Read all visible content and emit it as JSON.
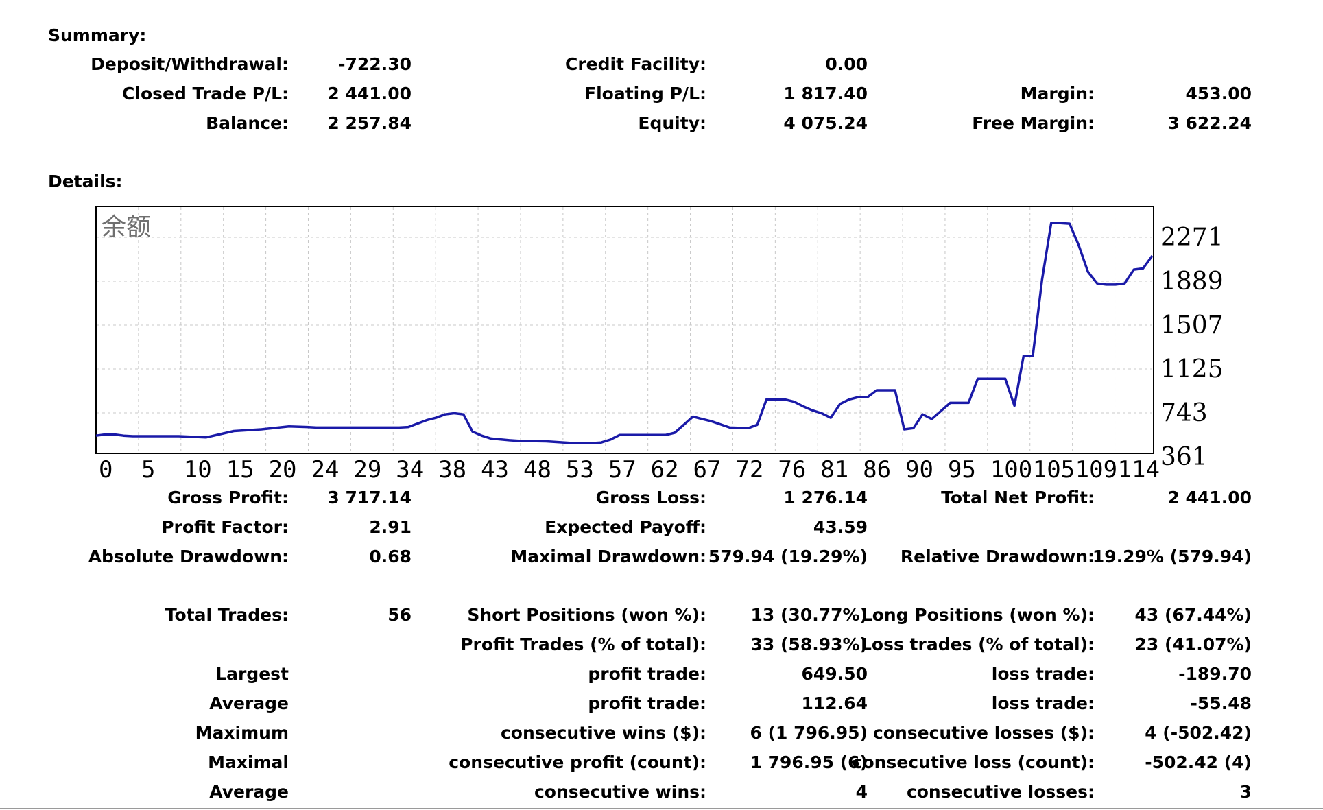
{
  "summary": {
    "title": "Summary:",
    "deposit_label": "Deposit/Withdrawal:",
    "deposit_value": "-722.30",
    "credit_label": "Credit Facility:",
    "credit_value": "0.00",
    "closed_label": "Closed Trade P/L:",
    "closed_value": "2 441.00",
    "floating_label": "Floating P/L:",
    "floating_value": "1 817.40",
    "margin_label": "Margin:",
    "margin_value": "453.00",
    "balance_label": "Balance:",
    "balance_value": "2 257.84",
    "equity_label": "Equity:",
    "equity_value": "4 075.24",
    "free_margin_label": "Free Margin:",
    "free_margin_value": "3 622.24"
  },
  "details": {
    "title": "Details:",
    "gross_profit_label": "Gross Profit:",
    "gross_profit_value": "3 717.14",
    "gross_loss_label": "Gross Loss:",
    "gross_loss_value": "1 276.14",
    "total_net_label": "Total Net Profit:",
    "total_net_value": "2 441.00",
    "profit_factor_label": "Profit Factor:",
    "profit_factor_value": "2.91",
    "expected_payoff_label": "Expected Payoff:",
    "expected_payoff_value": "43.59",
    "abs_dd_label": "Absolute Drawdown:",
    "abs_dd_value": "0.68",
    "max_dd_label": "Maximal Drawdown:",
    "max_dd_value": "579.94 (19.29%)",
    "rel_dd_label": "Relative Drawdown:",
    "rel_dd_value": "19.29% (579.94)",
    "total_trades_label": "Total Trades:",
    "total_trades_value": "56",
    "short_label": "Short Positions (won %):",
    "short_value": "13 (30.77%)",
    "long_label": "Long Positions (won %):",
    "long_value": "43 (67.44%)",
    "profit_trades_label": "Profit Trades (% of total):",
    "profit_trades_value": "33 (58.93%)",
    "loss_trades_label": "Loss trades (% of total):",
    "loss_trades_value": "23 (41.07%)",
    "largest_label": "Largest",
    "largest_profit_label": "profit trade:",
    "largest_profit_value": "649.50",
    "largest_loss_label": "loss trade:",
    "largest_loss_value": "-189.70",
    "average_label": "Average",
    "average_profit_label": "profit trade:",
    "average_profit_value": "112.64",
    "average_loss_label": "loss trade:",
    "average_loss_value": "-55.48",
    "maximum_label": "Maximum",
    "max_cons_wins_label": "consecutive wins ($):",
    "max_cons_wins_value": "6 (1 796.95)",
    "max_cons_losses_label": "consecutive losses ($):",
    "max_cons_losses_value": "4 (-502.42)",
    "maximal_label": "Maximal",
    "maximal_profit_label": "consecutive profit (count):",
    "maximal_profit_value": "1 796.95 (6)",
    "maximal_loss_label": "consecutive loss (count):",
    "maximal_loss_value": "-502.42 (4)",
    "average2_label": "Average",
    "avg_cons_wins_label": "consecutive wins:",
    "avg_cons_wins_value": "4",
    "avg_cons_losses_label": "consecutive losses:",
    "avg_cons_losses_value": "3"
  },
  "chart_data": {
    "type": "line",
    "title": "余额",
    "line_color": "#1a1aa8",
    "grid": true,
    "x_tick_labels": [
      "0",
      "5",
      "10",
      "15",
      "20",
      "24",
      "29",
      "34",
      "38",
      "43",
      "48",
      "53",
      "57",
      "62",
      "67",
      "72",
      "76",
      "81",
      "86",
      "90",
      "95",
      "100",
      "105",
      "109",
      "114"
    ],
    "y_tick_labels": [
      "2271",
      "1889",
      "1507",
      "1125",
      "743",
      "361"
    ],
    "y_ticks": [
      2271,
      1889,
      1507,
      1125,
      743,
      361
    ],
    "ylim": [
      361,
      2400
    ],
    "xlim": [
      0,
      115
    ],
    "series": [
      {
        "x": [
          0,
          1,
          2,
          3,
          4,
          5,
          7,
          9,
          12,
          15,
          18,
          21,
          23,
          24,
          26,
          27,
          30,
          33,
          34,
          36,
          37,
          38,
          39,
          40,
          41,
          42,
          43,
          45,
          46,
          49,
          51,
          52,
          54,
          55,
          56,
          57,
          58,
          59,
          60,
          61,
          62,
          63,
          64,
          65,
          66,
          67,
          69,
          71,
          72,
          73,
          74,
          75,
          76,
          77,
          78,
          79,
          80,
          81,
          82,
          83,
          84,
          85,
          86,
          87,
          88,
          89,
          90,
          91,
          92,
          93,
          94,
          95,
          96,
          97,
          98,
          99,
          100,
          101,
          102,
          103,
          104,
          105,
          106,
          107,
          108,
          109,
          110,
          111,
          112,
          113,
          114,
          115
        ],
        "y": [
          545,
          555,
          555,
          545,
          540,
          540,
          540,
          540,
          530,
          585,
          600,
          625,
          620,
          615,
          615,
          615,
          615,
          615,
          620,
          680,
          700,
          730,
          740,
          730,
          580,
          545,
          520,
          505,
          500,
          495,
          485,
          480,
          480,
          485,
          510,
          550,
          550,
          550,
          550,
          550,
          550,
          570,
          640,
          710,
          690,
          670,
          615,
          610,
          640,
          860,
          860,
          860,
          840,
          800,
          765,
          740,
          700,
          820,
          860,
          880,
          880,
          940,
          940,
          940,
          600,
          610,
          730,
          690,
          760,
          830,
          830,
          830,
          1040,
          1040,
          1040,
          1040,
          805,
          1240,
          1240,
          1900,
          2395,
          2395,
          2390,
          2200,
          1970,
          1870,
          1860,
          1860,
          1870,
          1990,
          2000,
          2110
        ]
      }
    ]
  }
}
